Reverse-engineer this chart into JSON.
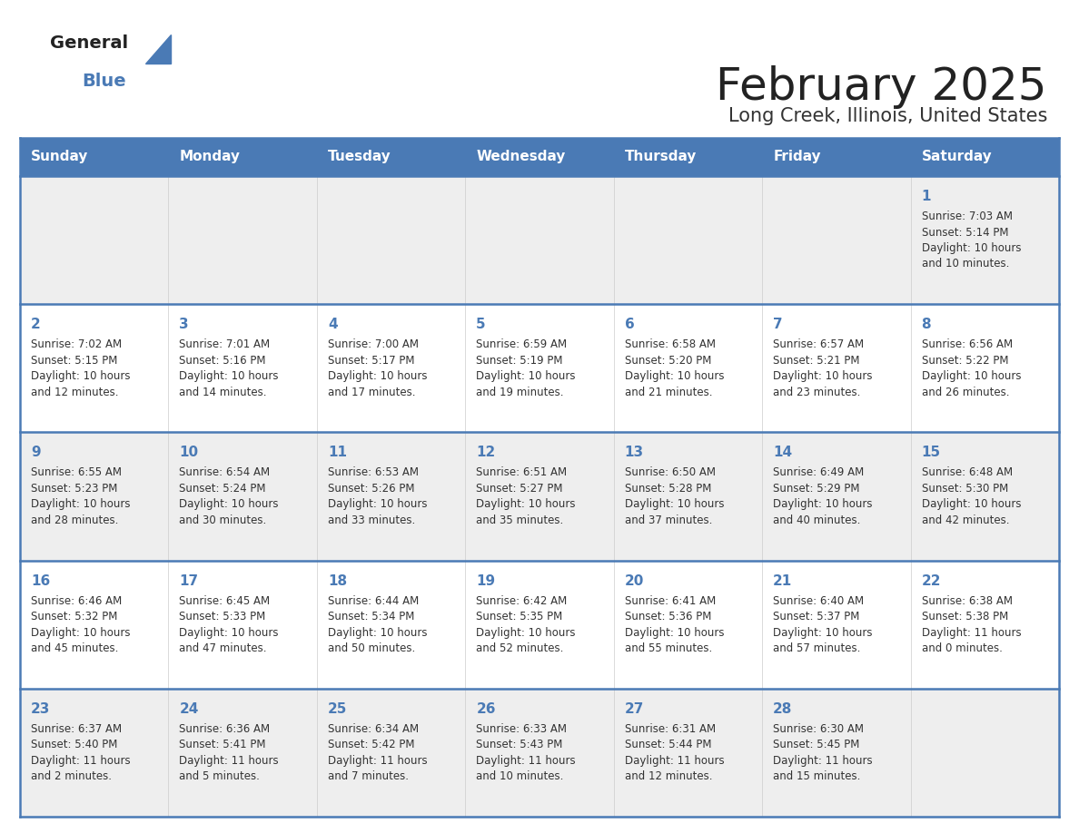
{
  "title": "February 2025",
  "subtitle": "Long Creek, Illinois, United States",
  "header_bg": "#4a7ab5",
  "header_text_color": "#ffffff",
  "row0_bg": "#eeeeee",
  "row1_bg": "#ffffff",
  "row2_bg": "#eeeeee",
  "row3_bg": "#ffffff",
  "row4_bg": "#eeeeee",
  "border_color": "#4a7ab5",
  "title_color": "#222222",
  "subtitle_color": "#333333",
  "day_num_color": "#4a7ab5",
  "cell_text_color": "#333333",
  "logo_general_color": "#222222",
  "logo_blue_color": "#4a7ab5",
  "logo_triangle_color": "#4a7ab5",
  "days_of_week": [
    "Sunday",
    "Monday",
    "Tuesday",
    "Wednesday",
    "Thursday",
    "Friday",
    "Saturday"
  ],
  "calendar": [
    [
      null,
      null,
      null,
      null,
      null,
      null,
      {
        "day": 1,
        "sunrise": "7:03 AM",
        "sunset": "5:14 PM",
        "daylight": "10 hours and 10 minutes."
      }
    ],
    [
      {
        "day": 2,
        "sunrise": "7:02 AM",
        "sunset": "5:15 PM",
        "daylight": "10 hours and 12 minutes."
      },
      {
        "day": 3,
        "sunrise": "7:01 AM",
        "sunset": "5:16 PM",
        "daylight": "10 hours and 14 minutes."
      },
      {
        "day": 4,
        "sunrise": "7:00 AM",
        "sunset": "5:17 PM",
        "daylight": "10 hours and 17 minutes."
      },
      {
        "day": 5,
        "sunrise": "6:59 AM",
        "sunset": "5:19 PM",
        "daylight": "10 hours and 19 minutes."
      },
      {
        "day": 6,
        "sunrise": "6:58 AM",
        "sunset": "5:20 PM",
        "daylight": "10 hours and 21 minutes."
      },
      {
        "day": 7,
        "sunrise": "6:57 AM",
        "sunset": "5:21 PM",
        "daylight": "10 hours and 23 minutes."
      },
      {
        "day": 8,
        "sunrise": "6:56 AM",
        "sunset": "5:22 PM",
        "daylight": "10 hours and 26 minutes."
      }
    ],
    [
      {
        "day": 9,
        "sunrise": "6:55 AM",
        "sunset": "5:23 PM",
        "daylight": "10 hours and 28 minutes."
      },
      {
        "day": 10,
        "sunrise": "6:54 AM",
        "sunset": "5:24 PM",
        "daylight": "10 hours and 30 minutes."
      },
      {
        "day": 11,
        "sunrise": "6:53 AM",
        "sunset": "5:26 PM",
        "daylight": "10 hours and 33 minutes."
      },
      {
        "day": 12,
        "sunrise": "6:51 AM",
        "sunset": "5:27 PM",
        "daylight": "10 hours and 35 minutes."
      },
      {
        "day": 13,
        "sunrise": "6:50 AM",
        "sunset": "5:28 PM",
        "daylight": "10 hours and 37 minutes."
      },
      {
        "day": 14,
        "sunrise": "6:49 AM",
        "sunset": "5:29 PM",
        "daylight": "10 hours and 40 minutes."
      },
      {
        "day": 15,
        "sunrise": "6:48 AM",
        "sunset": "5:30 PM",
        "daylight": "10 hours and 42 minutes."
      }
    ],
    [
      {
        "day": 16,
        "sunrise": "6:46 AM",
        "sunset": "5:32 PM",
        "daylight": "10 hours and 45 minutes."
      },
      {
        "day": 17,
        "sunrise": "6:45 AM",
        "sunset": "5:33 PM",
        "daylight": "10 hours and 47 minutes."
      },
      {
        "day": 18,
        "sunrise": "6:44 AM",
        "sunset": "5:34 PM",
        "daylight": "10 hours and 50 minutes."
      },
      {
        "day": 19,
        "sunrise": "6:42 AM",
        "sunset": "5:35 PM",
        "daylight": "10 hours and 52 minutes."
      },
      {
        "day": 20,
        "sunrise": "6:41 AM",
        "sunset": "5:36 PM",
        "daylight": "10 hours and 55 minutes."
      },
      {
        "day": 21,
        "sunrise": "6:40 AM",
        "sunset": "5:37 PM",
        "daylight": "10 hours and 57 minutes."
      },
      {
        "day": 22,
        "sunrise": "6:38 AM",
        "sunset": "5:38 PM",
        "daylight": "11 hours and 0 minutes."
      }
    ],
    [
      {
        "day": 23,
        "sunrise": "6:37 AM",
        "sunset": "5:40 PM",
        "daylight": "11 hours and 2 minutes."
      },
      {
        "day": 24,
        "sunrise": "6:36 AM",
        "sunset": "5:41 PM",
        "daylight": "11 hours and 5 minutes."
      },
      {
        "day": 25,
        "sunrise": "6:34 AM",
        "sunset": "5:42 PM",
        "daylight": "11 hours and 7 minutes."
      },
      {
        "day": 26,
        "sunrise": "6:33 AM",
        "sunset": "5:43 PM",
        "daylight": "11 hours and 10 minutes."
      },
      {
        "day": 27,
        "sunrise": "6:31 AM",
        "sunset": "5:44 PM",
        "daylight": "11 hours and 12 minutes."
      },
      {
        "day": 28,
        "sunrise": "6:30 AM",
        "sunset": "5:45 PM",
        "daylight": "11 hours and 15 minutes."
      },
      null
    ]
  ]
}
